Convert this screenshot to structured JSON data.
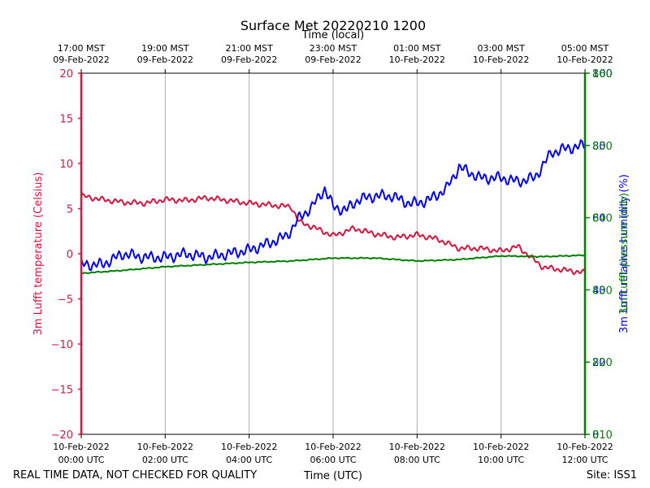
{
  "chart_data": {
    "type": "line",
    "title": "Surface Met 20220210 1200",
    "top_axis_label": "Time (local)",
    "xlabel": "Time (UTC)",
    "ylabel_left": "3m Lufft temperature (Celsius)",
    "ylabel_right_1": "3m Lufft relative humidity (%)",
    "ylabel_right_2": "3m Lufft pressure (mb)",
    "ylim_left": [
      -20,
      20
    ],
    "ylim_right": [
      0,
      100
    ],
    "ylim_right2": [
      810,
      860
    ],
    "xlim_hours": [
      0,
      12
    ],
    "grid": "vertical",
    "left_ticks": [
      20,
      15,
      10,
      5,
      0,
      -5,
      -10,
      -15,
      -20
    ],
    "left_tick_labels": [
      "20",
      "15",
      "10",
      "5",
      "0",
      "−5",
      "−10",
      "−15",
      "−20"
    ],
    "right_ticks": [
      100,
      80,
      60,
      40,
      20,
      0
    ],
    "right_tick_labels_1": [
      "100",
      "80",
      "60",
      "40",
      "20",
      "0"
    ],
    "right_tick_labels_2": [
      "860",
      "850",
      "840",
      "830",
      "820",
      "810"
    ],
    "x_ticks_hours": [
      0,
      2,
      4,
      6,
      8,
      10,
      12
    ],
    "x_tick_labels_bottom": [
      [
        "10-Feb-2022",
        "00:00 UTC"
      ],
      [
        "10-Feb-2022",
        "02:00 UTC"
      ],
      [
        "10-Feb-2022",
        "04:00 UTC"
      ],
      [
        "10-Feb-2022",
        "06:00 UTC"
      ],
      [
        "10-Feb-2022",
        "08:00 UTC"
      ],
      [
        "10-Feb-2022",
        "10:00 UTC"
      ],
      [
        "10-Feb-2022",
        "12:00 UTC"
      ]
    ],
    "x_tick_labels_top": [
      [
        "17:00 MST",
        "09-Feb-2022"
      ],
      [
        "19:00 MST",
        "09-Feb-2022"
      ],
      [
        "21:00 MST",
        "09-Feb-2022"
      ],
      [
        "23:00 MST",
        "09-Feb-2022"
      ],
      [
        "01:00 MST",
        "10-Feb-2022"
      ],
      [
        "03:00 MST",
        "10-Feb-2022"
      ],
      [
        "05:00 MST",
        "10-Feb-2022"
      ]
    ],
    "series": [
      {
        "name": "3m Lufft temperature (Celsius)",
        "axis": "left",
        "color": "#dc143c",
        "x_hours": [
          0,
          0.5,
          1,
          1.5,
          2,
          2.5,
          3,
          3.5,
          4,
          4.5,
          5,
          5.2,
          5.5,
          6,
          6.5,
          7,
          7.5,
          8,
          8.5,
          9,
          9.5,
          10,
          10.4,
          11,
          11.5,
          12
        ],
        "values": [
          6.4,
          6.0,
          5.7,
          5.6,
          6.0,
          5.9,
          6.2,
          5.9,
          5.6,
          5.4,
          5.2,
          3.5,
          3.0,
          2.0,
          2.8,
          2.2,
          1.8,
          2.1,
          1.6,
          0.6,
          0.6,
          0.3,
          0.8,
          -1.5,
          -1.8,
          -2.1
        ]
      },
      {
        "name": "3m Lufft relative humidity (%)",
        "axis": "right",
        "color": "#0000ff",
        "x_hours": [
          0,
          0.5,
          1,
          1.5,
          2,
          2.5,
          3,
          3.5,
          4,
          4.5,
          4.9,
          5.2,
          5.5,
          5.8,
          6,
          6.3,
          6.6,
          7,
          7.4,
          7.8,
          8,
          8.3,
          8.7,
          9.0,
          9.5,
          10,
          10.4,
          10.8,
          11.2,
          11.5,
          12
        ],
        "values": [
          47,
          47,
          50,
          49,
          49,
          50,
          49,
          50,
          51,
          53,
          55,
          60,
          63,
          68,
          63,
          62,
          65,
          66,
          66,
          64,
          64,
          65,
          68,
          74,
          71,
          71,
          70,
          71,
          78,
          79,
          80
        ]
      },
      {
        "name": "3m Lufft pressure (mb)",
        "axis": "right2",
        "color": "#008000",
        "x_hours": [
          0,
          1,
          2,
          3,
          4,
          5,
          6,
          7,
          8,
          9,
          10,
          11,
          12
        ],
        "values": [
          832.3,
          832.7,
          833.2,
          833.5,
          833.8,
          834.0,
          834.4,
          834.4,
          834.0,
          834.2,
          834.7,
          834.6,
          834.8
        ]
      }
    ]
  },
  "footer": {
    "disclaimer": "REAL TIME DATA, NOT CHECKED FOR QUALITY",
    "site": "Site: ISS1"
  },
  "colors": {
    "temperature": "#dc143c",
    "humidity": "#0000ff",
    "pressure": "#008000",
    "grid": "#b0b0b0"
  }
}
